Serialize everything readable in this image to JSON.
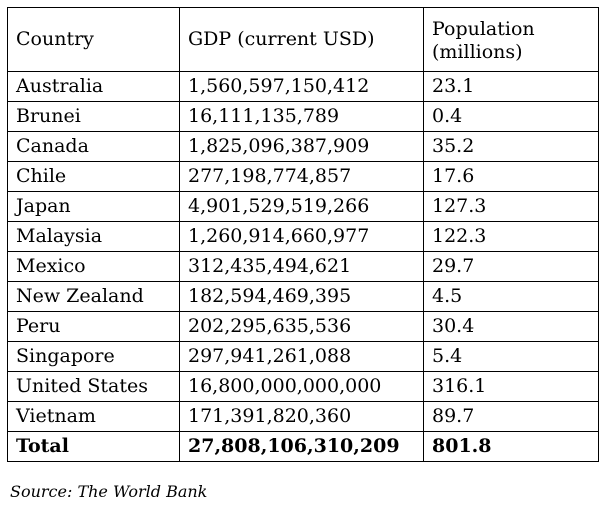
{
  "table": {
    "headers": {
      "country": "Country",
      "gdp": "GDP (current USD)",
      "population": "Population (millions)"
    },
    "rows": [
      {
        "country": "Australia",
        "gdp": "1,560,597,150,412",
        "population": "23.1"
      },
      {
        "country": "Brunei",
        "gdp": "16,111,135,789",
        "population": "0.4"
      },
      {
        "country": "Canada",
        "gdp": "1,825,096,387,909",
        "population": "35.2"
      },
      {
        "country": "Chile",
        "gdp": "277,198,774,857",
        "population": "17.6"
      },
      {
        "country": "Japan",
        "gdp": "4,901,529,519,266",
        "population": "127.3"
      },
      {
        "country": "Malaysia",
        "gdp": "1,260,914,660,977",
        "population": "122.3"
      },
      {
        "country": "Mexico",
        "gdp": "312,435,494,621",
        "population": "29.7"
      },
      {
        "country": "New Zealand",
        "gdp": "182,594,469,395",
        "population": "4.5"
      },
      {
        "country": "Peru",
        "gdp": "202,295,635,536",
        "population": "30.4"
      },
      {
        "country": "Singapore",
        "gdp": "297,941,261,088",
        "population": "5.4"
      },
      {
        "country": "United States",
        "gdp": "16,800,000,000,000",
        "population": "316.1"
      },
      {
        "country": "Vietnam",
        "gdp": "171,391,820,360",
        "population": "89.7"
      }
    ],
    "total": {
      "label": "Total",
      "gdp": "27,808,106,310,209",
      "population": "801.8"
    }
  },
  "source": "Source: The World Bank"
}
